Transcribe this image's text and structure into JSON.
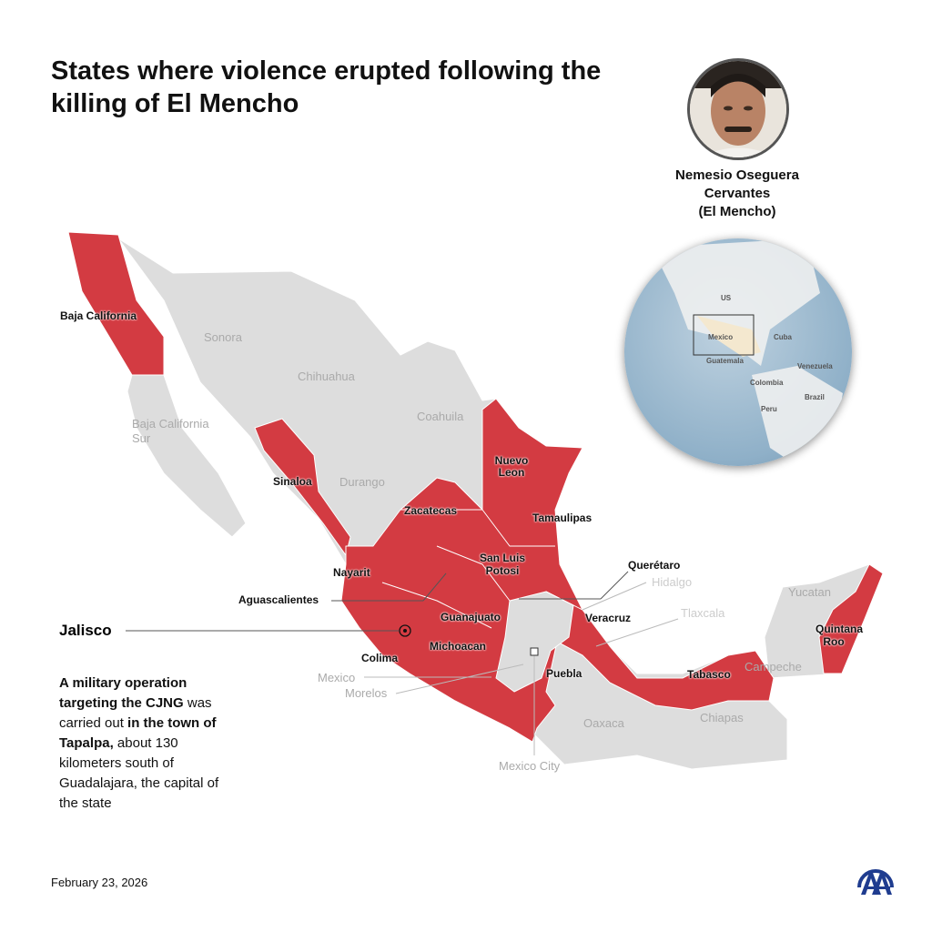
{
  "title": "States where violence erupted following the killing of El Mencho",
  "portrait": {
    "name_line1": "Nemesio Oseguera",
    "name_line2": "Cervantes",
    "name_line3": "(El Mencho)"
  },
  "globe": {
    "labels": [
      "US",
      "Mexico",
      "Cuba",
      "Guatemala",
      "Venezuela",
      "Colombia",
      "Brazil",
      "Peru"
    ]
  },
  "colors": {
    "affected": "#d33b42",
    "unaffected": "#dddddd",
    "logo": "#1f3c8f"
  },
  "map": {
    "affected_states": [
      "Baja California",
      "Sinaloa",
      "Nuevo Leon",
      "Zacatecas",
      "Tamaulipas",
      "San Luis Potosi",
      "Querétaro",
      "Nayarit",
      "Aguascalientes",
      "Guanajuato",
      "Veracruz",
      "Colima",
      "Michoacan",
      "Puebla",
      "Tabasco",
      "Quintana Roo"
    ],
    "other_states": [
      "Sonora",
      "Chihuahua",
      "Baja California Sur",
      "Coahuila",
      "Durango",
      "Hidalgo",
      "Tlaxcala",
      "Mexico",
      "Morelos",
      "Yucatan",
      "Campeche",
      "Oaxaca",
      "Chiapas",
      "Mexico City"
    ]
  },
  "callout": {
    "state": "Jalisco",
    "text_bold1": "A military operation targeting the CJNG",
    "text1": " was carried out ",
    "text_bold2": "in the town of Tapalpa,",
    "text2": " about 130 kilometers south of Guadalajara, the capital of the state"
  },
  "date": "February 23, 2026",
  "logo": "AA"
}
